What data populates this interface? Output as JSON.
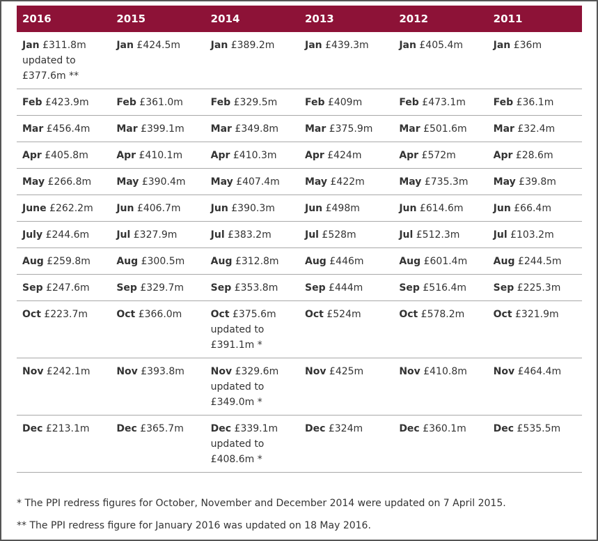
{
  "table": {
    "headers": [
      "2016",
      "2015",
      "2014",
      "2013",
      "2012",
      "2011"
    ],
    "rows": [
      [
        {
          "month": "Jan",
          "value": "£311.8m updated to £377.6m **"
        },
        {
          "month": "Jan",
          "value": "£424.5m"
        },
        {
          "month": "Jan",
          "value": "£389.2m"
        },
        {
          "month": "Jan",
          "value": "£439.3m"
        },
        {
          "month": "Jan",
          "value": "£405.4m"
        },
        {
          "month": "Jan",
          "value": "£36m"
        }
      ],
      [
        {
          "month": "Feb",
          "value": "£423.9m"
        },
        {
          "month": "Feb",
          "value": "£361.0m"
        },
        {
          "month": "Feb",
          "value": "£329.5m"
        },
        {
          "month": "Feb",
          "value": "£409m"
        },
        {
          "month": "Feb",
          "value": "£473.1m"
        },
        {
          "month": "Feb",
          "value": "£36.1m"
        }
      ],
      [
        {
          "month": "Mar",
          "value": "£456.4m"
        },
        {
          "month": "Mar",
          "value": "£399.1m"
        },
        {
          "month": "Mar",
          "value": "£349.8m"
        },
        {
          "month": "Mar",
          "value": "£375.9m"
        },
        {
          "month": "Mar",
          "value": "£501.6m"
        },
        {
          "month": "Mar",
          "value": "£32.4m"
        }
      ],
      [
        {
          "month": "Apr",
          "value": "£405.8m"
        },
        {
          "month": "Apr",
          "value": "£410.1m"
        },
        {
          "month": "Apr",
          "value": "£410.3m"
        },
        {
          "month": "Apr",
          "value": "£424m"
        },
        {
          "month": "Apr",
          "value": "£572m"
        },
        {
          "month": "Apr",
          "value": "£28.6m"
        }
      ],
      [
        {
          "month": "May",
          "value": "£266.8m"
        },
        {
          "month": "May",
          "value": "£390.4m"
        },
        {
          "month": "May",
          "value": "£407.4m"
        },
        {
          "month": "May",
          "value": "£422m"
        },
        {
          "month": "May",
          "value": "£735.3m"
        },
        {
          "month": "May",
          "value": "£39.8m"
        }
      ],
      [
        {
          "month": "June",
          "value": "£262.2m"
        },
        {
          "month": "Jun",
          "value": "£406.7m"
        },
        {
          "month": "Jun",
          "value": "£390.3m"
        },
        {
          "month": "Jun",
          "value": "£498m"
        },
        {
          "month": "Jun",
          "value": "£614.6m"
        },
        {
          "month": "Jun",
          "value": "£66.4m"
        }
      ],
      [
        {
          "month": "July",
          "value": "£244.6m"
        },
        {
          "month": "Jul",
          "value": "£327.9m"
        },
        {
          "month": "Jul",
          "value": "£383.2m"
        },
        {
          "month": "Jul",
          "value": "£528m"
        },
        {
          "month": "Jul",
          "value": "£512.3m"
        },
        {
          "month": "Jul",
          "value": "£103.2m"
        }
      ],
      [
        {
          "month": "Aug",
          "value": "£259.8m"
        },
        {
          "month": "Aug",
          "value": "£300.5m"
        },
        {
          "month": "Aug",
          "value": "£312.8m"
        },
        {
          "month": "Aug",
          "value": "£446m"
        },
        {
          "month": "Aug",
          "value": "£601.4m"
        },
        {
          "month": "Aug",
          "value": "£244.5m"
        }
      ],
      [
        {
          "month": "Sep",
          "value": "£247.6m"
        },
        {
          "month": "Sep",
          "value": "£329.7m"
        },
        {
          "month": "Sep",
          "value": "£353.8m"
        },
        {
          "month": "Sep",
          "value": "£444m"
        },
        {
          "month": "Sep",
          "value": "£516.4m"
        },
        {
          "month": "Sep",
          "value": "£225.3m"
        }
      ],
      [
        {
          "month": "Oct",
          "value": "£223.7m"
        },
        {
          "month": "Oct",
          "value": "£366.0m"
        },
        {
          "month": "Oct",
          "value": "£375.6m updated to £391.1m *"
        },
        {
          "month": "Oct",
          "value": "£524m"
        },
        {
          "month": "Oct",
          "value": "£578.2m"
        },
        {
          "month": "Oct",
          "value": "£321.9m"
        }
      ],
      [
        {
          "month": "Nov",
          "value": "£242.1m"
        },
        {
          "month": "Nov",
          "value": "£393.8m"
        },
        {
          "month": "Nov",
          "value": "£329.6m updated to £349.0m *"
        },
        {
          "month": "Nov",
          "value": "£425m"
        },
        {
          "month": "Nov",
          "value": "£410.8m"
        },
        {
          "month": "Nov",
          "value": "£464.4m"
        }
      ],
      [
        {
          "month": "Dec",
          "value": "£213.1m"
        },
        {
          "month": "Dec",
          "value": "£365.7m"
        },
        {
          "month": "Dec",
          "value": "£339.1m updated to £408.6m *"
        },
        {
          "month": "Dec",
          "value": "£324m"
        },
        {
          "month": "Dec",
          "value": "£360.1m"
        },
        {
          "month": "Dec",
          "value": "£535.5m"
        }
      ]
    ]
  },
  "footnotes": [
    "* The PPI redress figures for October, November and December 2014 were updated on 7 April 2015.",
    "** The PPI redress figure for January 2016 was updated on 18 May 2016."
  ]
}
